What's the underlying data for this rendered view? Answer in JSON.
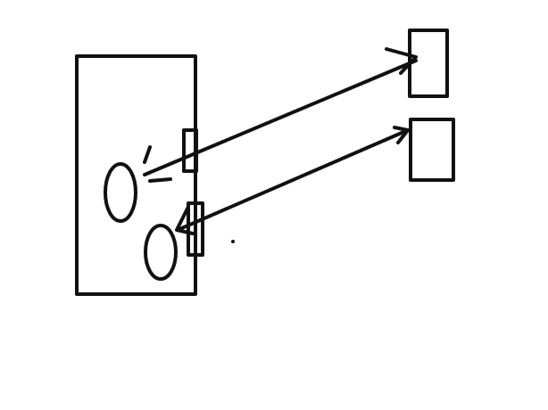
{
  "diagram": {
    "kind": "hand-drawn sketch",
    "colors": {
      "background": "#ffffff",
      "ink": "#111111"
    },
    "elements": [
      "device-box",
      "upper-port",
      "lower-port",
      "upper-oval",
      "lower-oval",
      "upper-target-box",
      "lower-target-box",
      "outgoing-arrow",
      "incoming-arrow",
      "stray-dot"
    ],
    "connections": [
      {
        "name": "outgoing-arrow",
        "from": "upper-oval",
        "to": "upper-target-box"
      },
      {
        "name": "incoming-arrow",
        "from": "lower-target-box",
        "to": "lower-oval"
      }
    ]
  }
}
